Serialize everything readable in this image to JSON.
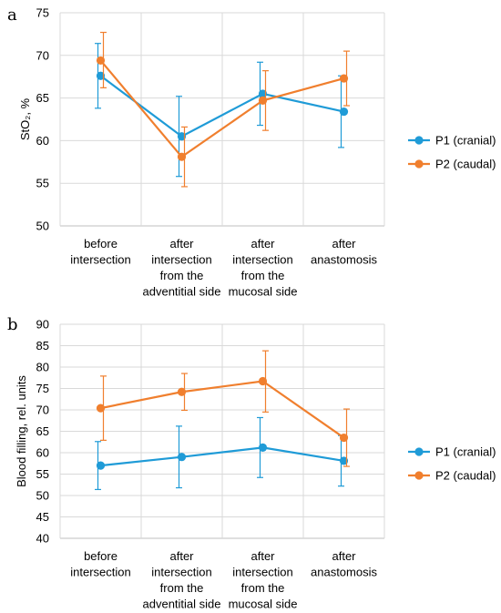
{
  "colors": {
    "P1": "#1f9bd7",
    "P2": "#f07f2e",
    "grid": "#d9d9d9",
    "axis": "#bfbfbf"
  },
  "chart_data": [
    {
      "type": "line",
      "panel_label": "a",
      "categories": [
        [
          "before",
          "intersection"
        ],
        [
          "after",
          "intersection",
          "from the",
          "adventitial side"
        ],
        [
          "after",
          "intersection",
          "from the",
          "mucosal side"
        ],
        [
          "after",
          "anastomosis"
        ]
      ],
      "ylabel": "StO₂, %",
      "ylim": [
        50,
        75
      ],
      "yticks": [
        50,
        55,
        60,
        65,
        70,
        75
      ],
      "grid": true,
      "legend_position": "right",
      "series": [
        {
          "name": "P1 (cranial)",
          "color": "#1f9bd7",
          "values": [
            67.6,
            60.5,
            65.5,
            63.4
          ],
          "err_low": [
            63.8,
            55.8,
            61.8,
            59.2
          ],
          "err_high": [
            71.4,
            65.2,
            69.2,
            67.6
          ]
        },
        {
          "name": "P2 (caudal)",
          "color": "#f07f2e",
          "values": [
            69.4,
            58.1,
            64.7,
            67.3
          ],
          "err_low": [
            66.2,
            54.6,
            61.2,
            64.1
          ],
          "err_high": [
            72.7,
            61.6,
            68.2,
            70.5
          ]
        }
      ]
    },
    {
      "type": "line",
      "panel_label": "b",
      "categories": [
        [
          "before",
          "intersection"
        ],
        [
          "after",
          "intersection",
          "from the",
          "adventitial side"
        ],
        [
          "after",
          "intersection",
          "from the",
          "mucosal side"
        ],
        [
          "after",
          "anastomosis"
        ]
      ],
      "ylabel": "Blood filling, rel. units",
      "ylim": [
        40,
        90
      ],
      "yticks": [
        40,
        45,
        50,
        55,
        60,
        65,
        70,
        75,
        80,
        85,
        90
      ],
      "grid": true,
      "legend_position": "right",
      "series": [
        {
          "name": "P1 (cranial)",
          "color": "#1f9bd7",
          "values": [
            57.0,
            59.0,
            61.2,
            58.1
          ],
          "err_low": [
            51.4,
            51.8,
            54.2,
            52.2
          ],
          "err_high": [
            62.6,
            66.2,
            68.2,
            64.0
          ]
        },
        {
          "name": "P2 (caudal)",
          "color": "#f07f2e",
          "values": [
            70.4,
            74.2,
            76.7,
            63.5
          ],
          "err_low": [
            62.9,
            69.9,
            69.5,
            56.8
          ],
          "err_high": [
            77.9,
            78.5,
            83.8,
            70.2
          ]
        }
      ]
    }
  ]
}
